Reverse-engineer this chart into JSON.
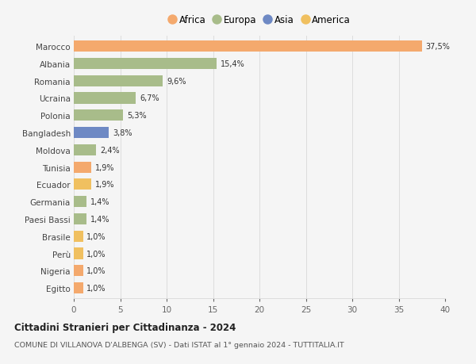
{
  "countries": [
    "Marocco",
    "Albania",
    "Romania",
    "Ucraina",
    "Polonia",
    "Bangladesh",
    "Moldova",
    "Tunisia",
    "Ecuador",
    "Germania",
    "Paesi Bassi",
    "Brasile",
    "Perù",
    "Nigeria",
    "Egitto"
  ],
  "values": [
    37.5,
    15.4,
    9.6,
    6.7,
    5.3,
    3.8,
    2.4,
    1.9,
    1.9,
    1.4,
    1.4,
    1.0,
    1.0,
    1.0,
    1.0
  ],
  "labels": [
    "37,5%",
    "15,4%",
    "9,6%",
    "6,7%",
    "5,3%",
    "3,8%",
    "2,4%",
    "1,9%",
    "1,9%",
    "1,4%",
    "1,4%",
    "1,0%",
    "1,0%",
    "1,0%",
    "1,0%"
  ],
  "colors": [
    "#F4A96D",
    "#A8BC8A",
    "#A8BC8A",
    "#A8BC8A",
    "#A8BC8A",
    "#6E89C4",
    "#A8BC8A",
    "#F4A96D",
    "#F0C060",
    "#A8BC8A",
    "#A8BC8A",
    "#F0C060",
    "#F0C060",
    "#F4A96D",
    "#F4A96D"
  ],
  "continent_colors": {
    "Africa": "#F4A96D",
    "Europa": "#A8BC8A",
    "Asia": "#6E89C4",
    "America": "#F0C060"
  },
  "legend_order": [
    "Africa",
    "Europa",
    "Asia",
    "America"
  ],
  "title_bold": "Cittadini Stranieri per Cittadinanza - 2024",
  "subtitle": "COMUNE DI VILLANOVA D'ALBENGA (SV) - Dati ISTAT al 1° gennaio 2024 - TUTTITALIA.IT",
  "xlim": [
    0,
    40
  ],
  "xticks": [
    0,
    5,
    10,
    15,
    20,
    25,
    30,
    35,
    40
  ],
  "background_color": "#f5f5f5",
  "grid_color": "#dddddd",
  "bar_height": 0.65
}
